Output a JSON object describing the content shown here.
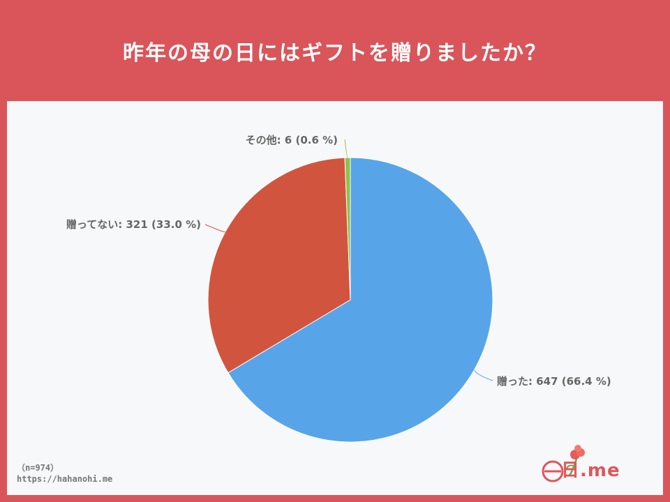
{
  "title": "昨年の母の日にはギフトを贈りましたか？",
  "chart_data": {
    "type": "pie",
    "title": "",
    "slices": [
      {
        "label": "贈った",
        "value": 647,
        "percent": "66.4 %",
        "color": "#58a4e8"
      },
      {
        "label": "贈ってない",
        "value": 321,
        "percent": "33.0 %",
        "color": "#d1553e"
      },
      {
        "label": "その他",
        "value": 6,
        "percent": "0.6 %",
        "color": "#8ec14a"
      }
    ],
    "data_labels": [
      "贈った: 647 (66.4 %)",
      "贈ってない: 321 (33.0 %)",
      "その他: 6 (0.6 %)"
    ]
  },
  "footer": {
    "n": "（n=974）",
    "url": "https://hahanohi.me"
  },
  "logo": {
    "text": "日.me"
  },
  "colors": {
    "background": "#d9555a",
    "panel": "#f7f8f9",
    "label": "#666666"
  }
}
